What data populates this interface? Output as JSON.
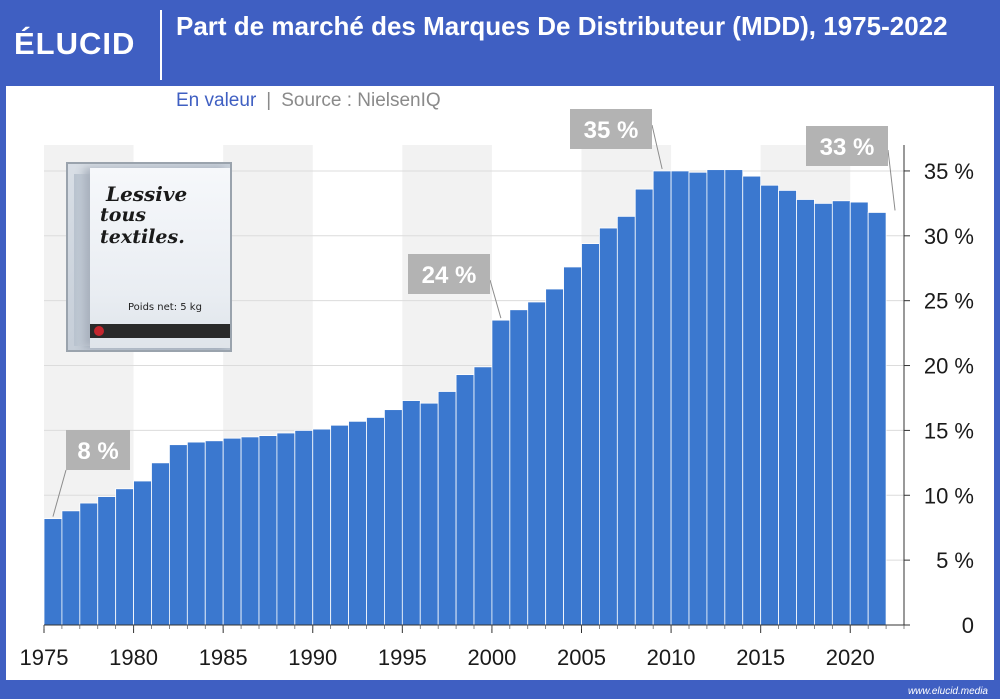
{
  "header": {
    "logo": "ÉLUCID",
    "title": "Part de marché des Marques De Distributeur (MDD), 1975-2022",
    "subtitle_measure": "En valeur",
    "subtitle_separator": "|",
    "subtitle_source": "Source : NielsenIQ"
  },
  "photo": {
    "line1": "Lessive",
    "line2": "tous textiles.",
    "weight": "Poids net: 5 kg"
  },
  "footer": {
    "url": "www.elucid.media"
  },
  "colors": {
    "background": "#3f5fc2",
    "bar": "#3b78cf",
    "bar_edge": "#ffffff",
    "band_light": "#f2f2f2",
    "callout": "#b3b3b3",
    "text": "#1a1a1a"
  },
  "chart_data": {
    "type": "bar",
    "title": "Part de marché des Marques De Distributeur (MDD), 1975-2022",
    "xlabel": "",
    "ylabel": "",
    "y_axis_side": "right",
    "ylim": [
      0,
      37
    ],
    "yticks": [
      0,
      5,
      10,
      15,
      20,
      25,
      30,
      35
    ],
    "ytick_labels": [
      "0",
      "5 %",
      "10 %",
      "15 %",
      "20 %",
      "25 %",
      "30 %",
      "35 %"
    ],
    "xtick_labels": [
      "1975",
      "1980",
      "1985",
      "1990",
      "1995",
      "2000",
      "2005",
      "2010",
      "2015",
      "2020"
    ],
    "grid": true,
    "x": [
      1976,
      1977,
      1978,
      1979,
      1980,
      1981,
      1982,
      1983,
      1984,
      1985,
      1986,
      1987,
      1988,
      1989,
      1990,
      1991,
      1992,
      1993,
      1994,
      1995,
      1996,
      1997,
      1998,
      1999,
      2000,
      2001,
      2002,
      2003,
      2004,
      2005,
      2006,
      2007,
      2008,
      2009,
      2010,
      2011,
      2012,
      2013,
      2014,
      2015,
      2016,
      2017,
      2018,
      2019,
      2020,
      2021,
      2022
    ],
    "values": [
      8.2,
      8.8,
      9.4,
      9.9,
      10.5,
      11.1,
      12.5,
      13.9,
      14.1,
      14.2,
      14.4,
      14.5,
      14.6,
      14.8,
      15.0,
      15.1,
      15.4,
      15.7,
      16.0,
      16.6,
      17.3,
      17.1,
      18.0,
      19.3,
      19.9,
      23.5,
      24.3,
      24.9,
      25.9,
      27.6,
      29.4,
      30.6,
      31.5,
      33.6,
      35.0,
      35.0,
      34.9,
      35.1,
      35.1,
      34.6,
      33.9,
      33.5,
      32.8,
      32.5,
      32.7,
      32.6,
      31.8
    ],
    "annotations": [
      {
        "text": "8 %",
        "target_year": 1976
      },
      {
        "text": "24 %",
        "target_year": 2001
      },
      {
        "text": "35 %",
        "target_year": 2010
      },
      {
        "text": "33 %",
        "target_year": 2023
      }
    ]
  }
}
